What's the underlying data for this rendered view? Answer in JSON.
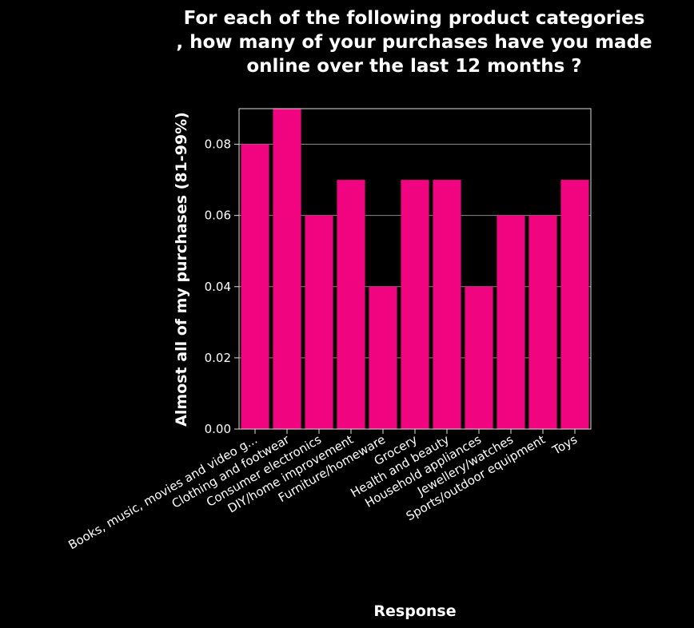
{
  "chart_data": {
    "type": "bar",
    "title_lines": [
      "For each of the following product categories",
      ", how many of your purchases have you made",
      "online over the last 12 months ?"
    ],
    "xlabel": "Response",
    "ylabel": "Almost all of my purchases (81-99%)",
    "categories": [
      "Books, music, movies and video g...",
      "Clothing and footwear",
      "Consumer electronics",
      "DIY/home improvement",
      "Furniture/homeware",
      "Grocery",
      "Health and beauty",
      "Household appliances",
      "Jewellery/watches",
      "Sports/outdoor equipment",
      "Toys"
    ],
    "values": [
      0.08,
      0.09,
      0.06,
      0.07,
      0.04,
      0.07,
      0.07,
      0.04,
      0.06,
      0.06,
      0.07
    ],
    "ylim": [
      0,
      0.09
    ],
    "yticks": [
      "0.00",
      "0.02",
      "0.04",
      "0.06",
      "0.08"
    ],
    "grid": true,
    "bar_color": "#f0047f",
    "background": "#000000"
  }
}
